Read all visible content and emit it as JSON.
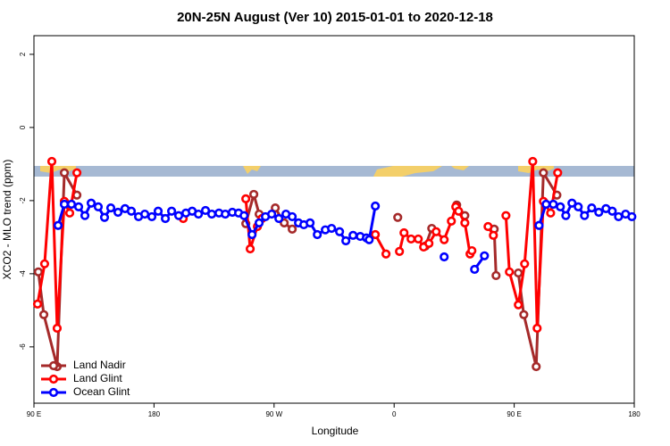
{
  "chart_data": {
    "type": "line",
    "title": "20N-25N August (Ver 10)   2015-01-01 to 2020-12-18",
    "x_label": "Longitude",
    "y_label": "XCO2 - MLO trend (ppm)",
    "xlim": [
      90,
      540
    ],
    "ylim": [
      -7.54,
      2.51
    ],
    "xticks": [
      {
        "value": 90,
        "label": "90 E"
      },
      180,
      {
        "value": 270,
        "label": "90 W"
      },
      {
        "value": 360,
        "label": "0"
      },
      {
        "value": 450,
        "label": "90 E"
      },
      {
        "value": 540,
        "label": "180"
      }
    ],
    "yticks": [
      -6,
      -4,
      -2,
      0,
      2
    ],
    "legend": "bottom-left",
    "series": [
      {
        "name": "Land Nadir",
        "color": "#a52a2a",
        "x": [
          93.3,
          97.4,
          107.4,
          112.8,
          122.2,
          null,
          248.8,
          254.8,
          258.8,
          null,
          270.9,
          277.6,
          283.6,
          null,
          362.7,
          null,
          383.5,
          388.2,
          null,
          406.9,
          413,
          null,
          435,
          436.4,
          null,
          453.1,
          457.2,
          466.5,
          471.9,
          482
        ],
        "values": [
          -3.95,
          -5.12,
          -6.54,
          -1.24,
          -1.85,
          null,
          -2.63,
          -1.83,
          -2.37,
          null,
          -2.2,
          -2.61,
          -2.78,
          null,
          -2.46,
          null,
          -3.24,
          -2.76,
          null,
          -2.12,
          -2.41,
          null,
          -2.78,
          -4.05,
          null,
          -3.98,
          -5.12,
          -6.54,
          -1.24,
          -1.85
        ]
      },
      {
        "name": "Land Glint",
        "color": "#ff0000",
        "x": [
          92.7,
          98,
          103.4,
          107.4,
          112.8,
          116.8,
          122.2,
          null,
          201.9,
          null,
          248.8,
          252.1,
          257.5,
          260.9,
          null,
          345.9,
          353.9,
          null,
          364,
          367.4,
          372.7,
          378.1,
          382.1,
          386.1,
          391.5,
          397.5,
          402.9,
          406.2,
          408.3,
          413,
          416.9,
          418.3,
          null,
          430.4,
          434.4,
          null,
          443.8,
          446.4,
          453.1,
          457.8,
          463.9,
          467.2,
          471.9,
          477.3,
          482.6
        ],
        "values": [
          -4.83,
          -3.73,
          -0.93,
          -5.49,
          -2.02,
          -2.34,
          -1.24,
          null,
          -2.49,
          null,
          -1.95,
          -3.32,
          -2.71,
          -2.49,
          null,
          -2.93,
          -3.46,
          null,
          -3.39,
          -2.88,
          -3.05,
          -3.05,
          -3.27,
          -3.17,
          -2.85,
          -3.07,
          -2.56,
          -2.17,
          -2.29,
          -2.61,
          -3.46,
          -3.37,
          null,
          -2.71,
          -2.95,
          null,
          -2.41,
          -3.95,
          -4.85,
          -3.73,
          -0.93,
          -5.49,
          -2.02,
          -2.34,
          -1.24
        ]
      },
      {
        "name": "Ocean Glint",
        "color": "#0000ff",
        "x": [
          108.1,
          112.8,
          118.1,
          123.5,
          128.2,
          132.9,
          138.2,
          142.9,
          147.6,
          153,
          158.3,
          163,
          168.4,
          173.1,
          178.4,
          183.1,
          188.5,
          193.2,
          198.5,
          203.9,
          208.6,
          213.3,
          218.6,
          223.3,
          228.7,
          233.4,
          238.7,
          243.4,
          247.5,
          253.5,
          258.8,
          263.5,
          268.2,
          273.6,
          278.9,
          283.6,
          288.3,
          292.3,
          297,
          302.4,
          308.4,
          313.1,
          319.1,
          323.8,
          329.2,
          334.6,
          339.2,
          341.3,
          345.9,
          null,
          397.5,
          null,
          420.3,
          427.7,
          null,
          468.6,
          473.9,
          479.3,
          484.6,
          488.7,
          493.3,
          498,
          502.7,
          508.1,
          513.4,
          518.8,
          523.5,
          528.2,
          533.5,
          538.2
        ],
        "values": [
          -2.68,
          -2.1,
          -2.1,
          -2.17,
          -2.41,
          -2.07,
          -2.17,
          -2.46,
          -2.2,
          -2.32,
          -2.22,
          -2.29,
          -2.44,
          -2.37,
          -2.44,
          -2.29,
          -2.49,
          -2.29,
          -2.41,
          -2.34,
          -2.29,
          -2.37,
          -2.27,
          -2.37,
          -2.34,
          -2.37,
          -2.32,
          -2.34,
          -2.41,
          -2.93,
          -2.61,
          -2.44,
          -2.37,
          -2.49,
          -2.37,
          -2.44,
          -2.61,
          -2.66,
          -2.61,
          -2.93,
          -2.8,
          -2.76,
          -2.85,
          -3.1,
          -2.95,
          -2.98,
          -3.02,
          -3.07,
          -2.15,
          null,
          -3.54,
          null,
          -3.88,
          -3.51,
          null,
          -2.68,
          -2.1,
          -2.1,
          -2.17,
          -2.41,
          -2.07,
          -2.17,
          -2.41,
          -2.2,
          -2.32,
          -2.22,
          -2.29,
          -2.44,
          -2.37,
          -2.44
        ]
      }
    ]
  }
}
